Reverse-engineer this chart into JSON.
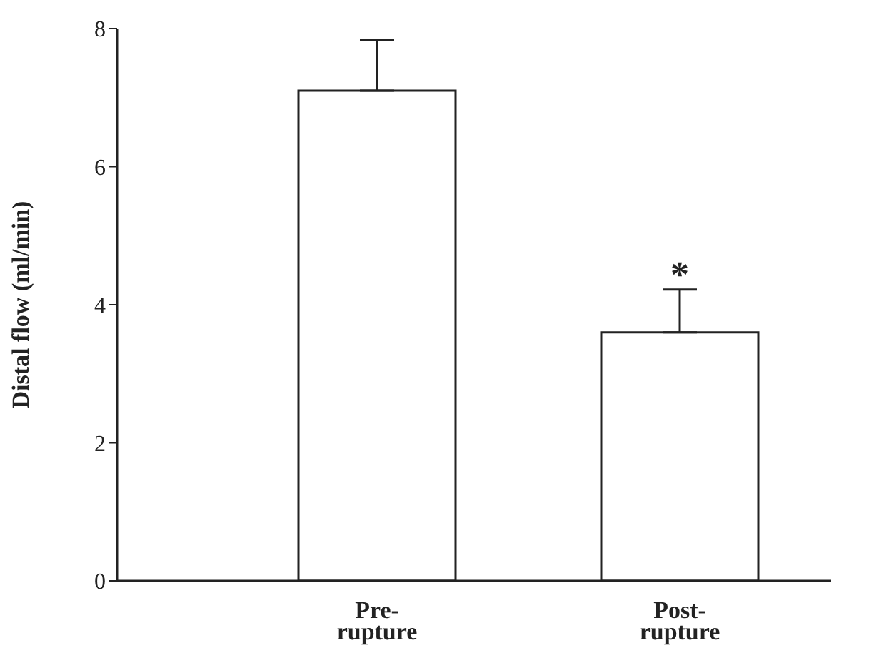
{
  "chart_data": {
    "type": "bar",
    "ylabel": "Distal flow (ml/min)",
    "categories": [
      "Pre-rupture",
      "Post-rupture"
    ],
    "values": [
      7.1,
      3.6
    ],
    "errors": [
      0.73,
      0.62
    ],
    "color": "#ffffff",
    "ylim": [
      0,
      8
    ],
    "yticks": [
      0,
      2,
      4,
      6,
      8
    ],
    "grid": false,
    "legend": false,
    "annotations": [
      "*"
    ]
  }
}
